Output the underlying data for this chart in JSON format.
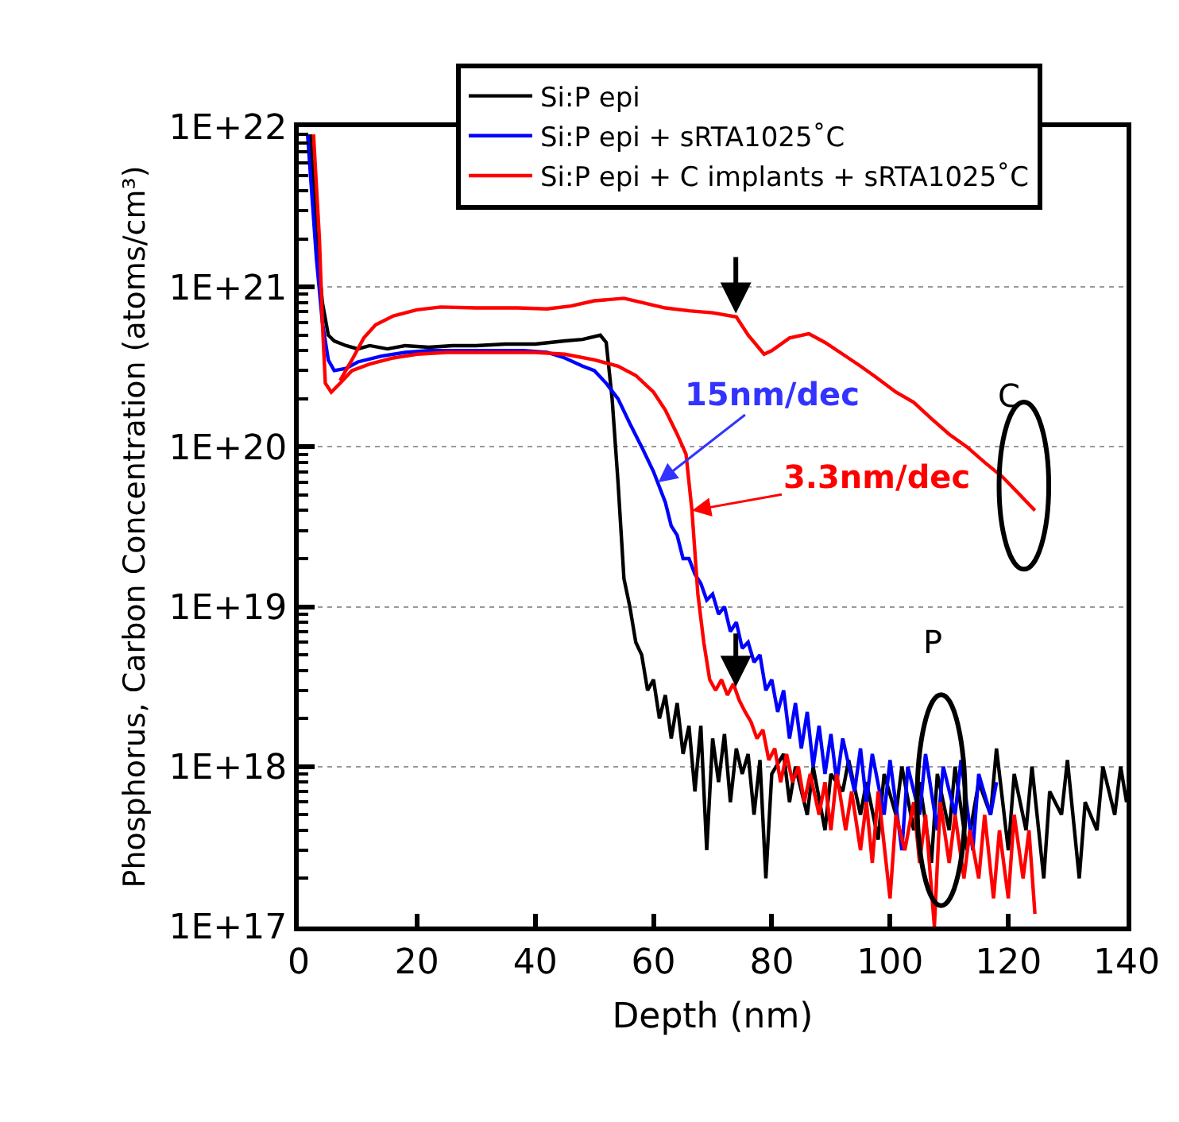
{
  "chart_data": {
    "type": "line",
    "xlabel": "Depth (nm)",
    "ylabel": "Phosphorus, Carbon Concentration (atoms/cm³)",
    "xlim": [
      0,
      140
    ],
    "xticks": [
      0,
      20,
      40,
      60,
      80,
      100,
      120,
      140
    ],
    "ylim": [
      1e+17,
      1e+22
    ],
    "yticks": [
      {
        "value": 1e+17,
        "label": "1E+17"
      },
      {
        "value": 1e+18,
        "label": "1E+18"
      },
      {
        "value": 1e+19,
        "label": "1E+19"
      },
      {
        "value": 1e+20,
        "label": "1E+20"
      },
      {
        "value": 1e+21,
        "label": "1E+21"
      },
      {
        "value": 1e+22,
        "label": "1E+22"
      }
    ],
    "log": "y",
    "grid": "y",
    "legend": "top right",
    "marker": "none",
    "line_style": "solid",
    "series": [
      {
        "name": "Si:P epi",
        "color": "#000000",
        "x": [
          2,
          3,
          4,
          5,
          6,
          8,
          10,
          12,
          15,
          18,
          22,
          26,
          30,
          35,
          40,
          45,
          48,
          51,
          52,
          53,
          54,
          55,
          56,
          57,
          58,
          59,
          60,
          61,
          62,
          63,
          64,
          65,
          66,
          67,
          68,
          69,
          70,
          71,
          72,
          73,
          74,
          75,
          76,
          77,
          78,
          79,
          80,
          82,
          83,
          84,
          86,
          87,
          89,
          90,
          92,
          93,
          95,
          96,
          98,
          99,
          101,
          102,
          104,
          105,
          107,
          108,
          110,
          111,
          113,
          115,
          117,
          118,
          120,
          121,
          123,
          124,
          126,
          127,
          129,
          130,
          132,
          133,
          135,
          136,
          138,
          139,
          140
        ],
        "values": [
          9e+21,
          2e+21,
          8e+20,
          5e+20,
          4.6e+20,
          4.3e+20,
          4.1e+20,
          4.3e+20,
          4.1e+20,
          4.3e+20,
          4.2e+20,
          4.3e+20,
          4.3e+20,
          4.4e+20,
          4.4e+20,
          4.6e+20,
          4.7e+20,
          5e+20,
          4.5e+20,
          2e+20,
          6e+19,
          1.5e+19,
          1e+19,
          6e+18,
          5e+18,
          3e+18,
          3.5e+18,
          2e+18,
          2.8e+18,
          1.5e+18,
          2.5e+18,
          1.2e+18,
          1.8e+18,
          7e+17,
          1.8e+18,
          3e+17,
          1.5e+18,
          8e+17,
          1.6e+18,
          6e+17,
          1.3e+18,
          9e+17,
          1.2e+18,
          5e+17,
          1.1e+18,
          2e+17,
          9e+17,
          1.2e+18,
          6e+17,
          1e+18,
          5e+17,
          1e+18,
          4e+17,
          9e+17,
          7e+17,
          1.1e+18,
          5e+17,
          8e+17,
          3.5e+17,
          9e+17,
          5e+17,
          1e+18,
          4e+17,
          8e+17,
          2.5e+17,
          9e+17,
          4e+17,
          1e+18,
          3e+17,
          8e+17,
          5e+17,
          1.3e+18,
          3e+17,
          9e+17,
          4e+17,
          1e+18,
          2e+17,
          7e+17,
          5e+17,
          1.1e+18,
          2e+17,
          6e+17,
          4e+17,
          1e+18,
          5e+17,
          1e+18,
          6e+17
        ]
      },
      {
        "name": "Si:P epi + sRTA1025˚C",
        "color": "#0000ff",
        "x": [
          1.5,
          3,
          4,
          5,
          6,
          8,
          10,
          14,
          18,
          22,
          30,
          38,
          42,
          45,
          48,
          50,
          52,
          54,
          56,
          58,
          60,
          62,
          63,
          64,
          65,
          66,
          67,
          68,
          69,
          70,
          71,
          72,
          73,
          74,
          75,
          76,
          77,
          78,
          79,
          80,
          81,
          82,
          83,
          84,
          85,
          86,
          87,
          88,
          89,
          90,
          91,
          92,
          94,
          95,
          96,
          97,
          99,
          100,
          102,
          103,
          105,
          106,
          108,
          109,
          111,
          112,
          114,
          115,
          117,
          118
        ],
        "values": [
          9e+21,
          1.5e+21,
          6e+20,
          3.5e+20,
          3e+20,
          3.1e+20,
          3.4e+20,
          3.7e+20,
          3.9e+20,
          4e+20,
          4e+20,
          4e+20,
          3.9e+20,
          3.6e+20,
          3.2e+20,
          3e+20,
          2.5e+20,
          2e+20,
          1.4e+20,
          1e+20,
          7e+19,
          4.5e+19,
          3.2e+19,
          2.8e+19,
          2e+19,
          2e+19,
          1.6e+19,
          1.4e+19,
          1.1e+19,
          1.2e+19,
          9e+18,
          1e+19,
          7e+18,
          8e+18,
          5.5e+18,
          6e+18,
          4.5e+18,
          5e+18,
          3e+18,
          3.5e+18,
          2.2e+18,
          3e+18,
          1.5e+18,
          2.5e+18,
          1.3e+18,
          2.2e+18,
          1e+18,
          1.8e+18,
          9e+17,
          1.6e+18,
          8e+17,
          1.5e+18,
          7e+17,
          1.3e+18,
          6e+17,
          1.2e+18,
          5e+17,
          1.1e+18,
          3e+17,
          1e+18,
          5e+17,
          1.2e+18,
          4e+17,
          1e+18,
          5e+17,
          1.1e+18,
          3e+17,
          9e+17,
          5e+17,
          8e+17
        ]
      },
      {
        "name": "Si:P epi + C implants + sRTA1025˚C",
        "color": "#ff0000",
        "x": [
          2.5,
          3.5,
          4,
          4.5,
          5.5,
          7,
          9,
          12,
          16,
          20,
          25,
          30,
          35,
          40,
          45,
          50,
          54,
          57,
          60,
          62,
          64,
          65.5,
          66.5,
          67.5,
          68.5,
          69.5,
          70.5,
          71.5,
          72.5,
          73.5,
          74.5,
          75.5,
          76.5,
          77.5,
          78.5,
          79.5,
          80.5,
          81.5,
          82.5,
          83.5,
          84.5,
          85.5,
          86.5,
          88,
          89,
          90,
          91,
          92.5,
          93.5,
          95,
          96,
          97,
          98,
          100,
          101,
          102.5,
          104,
          105,
          106,
          107.5,
          108.5,
          110,
          111,
          112.5,
          113.5,
          115,
          116,
          117.5,
          118.5,
          120,
          121,
          122.5,
          123.5,
          124.5
        ],
        "values": [
          9e+21,
          2e+21,
          6e+20,
          2.5e+20,
          2.2e+20,
          2.5e+20,
          3e+20,
          3.3e+20,
          3.6e+20,
          3.8e+20,
          3.9e+20,
          3.9e+20,
          3.9e+20,
          3.9e+20,
          3.8e+20,
          3.5e+20,
          3.2e+20,
          2.8e+20,
          2.2e+20,
          1.7e+20,
          1.2e+20,
          9e+19,
          4e+19,
          1.2e+19,
          6e+18,
          3.5e+18,
          3e+18,
          3.5e+18,
          2.8e+18,
          3.3e+18,
          2.6e+18,
          2.2e+18,
          1.9e+18,
          1.5e+18,
          1.7e+18,
          1.1e+18,
          1.3e+18,
          8e+17,
          1.2e+18,
          8e+17,
          1e+18,
          6e+17,
          9e+17,
          5e+17,
          8e+17,
          4e+17,
          9e+17,
          4e+17,
          7e+17,
          3e+17,
          6e+17,
          2.5e+17,
          7e+17,
          1.5e+17,
          5e+17,
          3e+17,
          6e+17,
          2.5e+17,
          5e+17,
          1e+17,
          6e+17,
          2.5e+17,
          5e+17,
          2e+17,
          4e+17,
          2e+17,
          5e+17,
          1.5e+17,
          4e+17,
          1.5e+17,
          5e+17,
          2e+17,
          4e+17,
          1.2e+17
        ]
      },
      {
        "color": "#ff0000",
        "x": [
          7,
          9,
          11,
          13,
          16,
          20,
          24,
          30,
          37,
          42,
          46,
          50,
          55,
          58,
          62,
          66,
          70,
          74,
          76,
          78.7,
          80,
          83,
          86.3,
          89,
          92,
          95,
          97.5,
          101,
          104,
          107,
          110,
          113,
          116,
          119,
          122,
          124.5
        ],
        "values": [
          2.6e+20,
          3.5e+20,
          4.8e+20,
          5.8e+20,
          6.6e+20,
          7.2e+20,
          7.5e+20,
          7.4e+20,
          7.4e+20,
          7.3e+20,
          7.6e+20,
          8.2e+20,
          8.5e+20,
          8e+20,
          7.4e+20,
          7.1e+20,
          6.9e+20,
          6.5e+20,
          5e+20,
          3.8e+20,
          4e+20,
          4.8e+20,
          5.1e+20,
          4.5e+20,
          3.8e+20,
          3.2e+20,
          2.75e+20,
          2.2e+20,
          1.9e+20,
          1.5e+20,
          1.2e+20,
          1e+20,
          8e+19,
          6.5e+19,
          5e+19,
          4e+19
        ]
      }
    ],
    "annotations": [
      {
        "text": "15nm/dec",
        "x": 60.8,
        "y": 6e+19
      },
      {
        "text": "3.3nm/dec",
        "x": 66.5,
        "y": 4e+19
      },
      "C",
      "P"
    ]
  }
}
